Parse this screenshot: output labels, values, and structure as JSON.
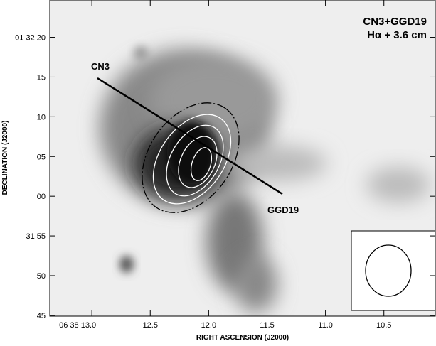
{
  "chart_data": {
    "type": "image",
    "title": "CN3+GGD19",
    "subtitle": "Hα + 3.6 cm",
    "x_label": "RIGHT ASCENSION (J2000)",
    "y_label": "DECLINATION (J2000)",
    "xlim": [
      13.36,
      10.06
    ],
    "ylim": [
      24.7,
      -15.1
    ],
    "xticks": [
      {
        "value": 13.0,
        "label": "06 38 13.0"
      },
      {
        "value": 12.5,
        "label": "12.5"
      },
      {
        "value": 12.0,
        "label": "12.0"
      },
      {
        "value": 11.5,
        "label": "11.5"
      },
      {
        "value": 11.0,
        "label": "11.0"
      },
      {
        "value": 10.5,
        "label": "10.5"
      }
    ],
    "yticks": [
      {
        "value": 20,
        "label": "01 32 20"
      },
      15,
      10,
      {
        "value": 5,
        "label": "05"
      },
      {
        "value": 0,
        "label": "00"
      },
      {
        "value": -5,
        "label": "31 55"
      },
      {
        "value": -10,
        "label": "50"
      },
      {
        "value": -15,
        "label": "45"
      }
    ],
    "annotations": [
      "CN3",
      "GGD19"
    ]
  }
}
